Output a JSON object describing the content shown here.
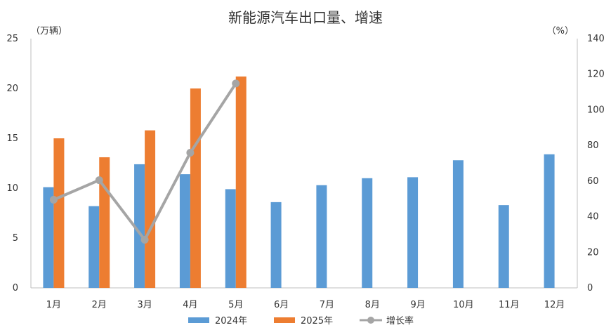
{
  "chart_data": {
    "type": "bar",
    "title": "新能源汽车出口量、增速",
    "left_unit": "（万辆）",
    "right_unit": "（%）",
    "categories": [
      "1月",
      "2月",
      "3月",
      "4月",
      "5月",
      "6月",
      "7月",
      "8月",
      "9月",
      "10月",
      "11月",
      "12月"
    ],
    "series": [
      {
        "name": "2024年",
        "type": "bar",
        "axis": "left",
        "color": "#5B9BD5",
        "values": [
          10.1,
          8.2,
          12.4,
          11.4,
          9.9,
          8.6,
          10.3,
          11.0,
          11.1,
          12.8,
          8.3,
          13.4
        ]
      },
      {
        "name": "2025年",
        "type": "bar",
        "axis": "left",
        "color": "#ED7D31",
        "values": [
          15.0,
          13.1,
          15.8,
          20.0,
          21.2,
          null,
          null,
          null,
          null,
          null,
          null,
          null
        ]
      },
      {
        "name": "增长率",
        "type": "line",
        "axis": "right",
        "color": "#A5A5A5",
        "values": [
          49.5,
          60.5,
          27.0,
          75.9,
          114.8,
          null,
          null,
          null,
          null,
          null,
          null,
          null
        ]
      }
    ],
    "ylim_left": [
      0,
      25
    ],
    "ylim_right": [
      0,
      140
    ],
    "yticks_left": [
      "0",
      "5",
      "10",
      "15",
      "20",
      "25"
    ],
    "yticks_right": [
      "0",
      "20",
      "40",
      "60",
      "80",
      "100",
      "120",
      "140"
    ],
    "grid": false,
    "legend_position": "bottom"
  }
}
